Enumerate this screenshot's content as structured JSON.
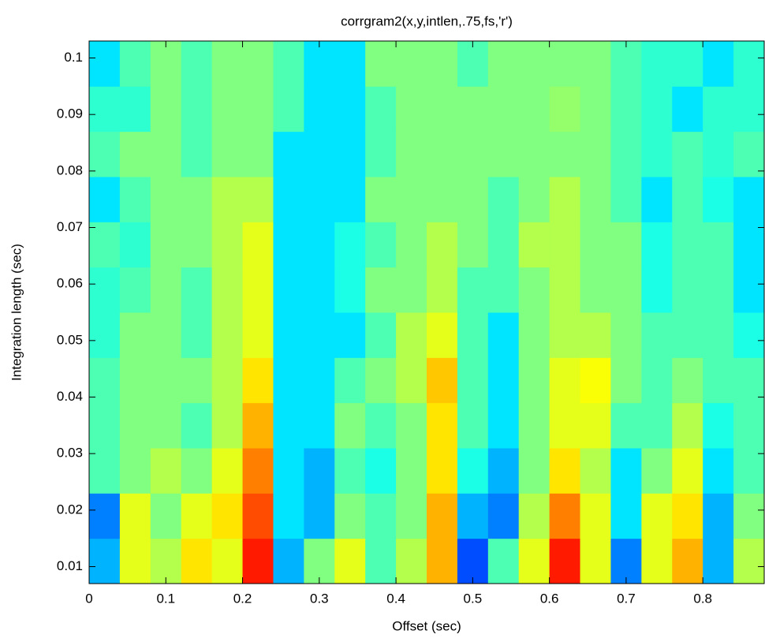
{
  "chart_data": {
    "type": "heatmap",
    "title": "corrgram2(x,y,intlen,.75,fs,'r')",
    "x_label": "Offset (sec)",
    "y_label": "Integration length (sec)",
    "colormap": "jet",
    "clim": [
      0,
      1
    ],
    "x": [
      0.02,
      0.06,
      0.1,
      0.14,
      0.18,
      0.22,
      0.26,
      0.3,
      0.34,
      0.38,
      0.42,
      0.46,
      0.5,
      0.54,
      0.58,
      0.62,
      0.66,
      0.7,
      0.74,
      0.78,
      0.82,
      0.86
    ],
    "y": [
      0.011,
      0.019,
      0.027,
      0.035,
      0.043,
      0.051,
      0.059,
      0.067,
      0.075,
      0.083,
      0.091,
      0.099
    ],
    "z": [
      [
        0.3,
        0.6,
        0.55,
        0.65,
        0.6,
        0.85,
        0.3,
        0.5,
        0.6,
        0.45,
        0.55,
        0.7,
        0.2,
        0.45,
        0.6,
        0.85,
        0.6,
        0.25,
        0.6,
        0.7,
        0.3,
        0.55
      ],
      [
        0.25,
        0.6,
        0.5,
        0.6,
        0.65,
        0.8,
        0.35,
        0.3,
        0.5,
        0.45,
        0.5,
        0.7,
        0.3,
        0.25,
        0.55,
        0.75,
        0.6,
        0.35,
        0.6,
        0.65,
        0.3,
        0.5
      ],
      [
        0.45,
        0.5,
        0.55,
        0.5,
        0.6,
        0.75,
        0.35,
        0.3,
        0.45,
        0.4,
        0.5,
        0.65,
        0.4,
        0.3,
        0.5,
        0.65,
        0.55,
        0.35,
        0.5,
        0.6,
        0.35,
        0.45
      ],
      [
        0.45,
        0.5,
        0.5,
        0.45,
        0.55,
        0.7,
        0.35,
        0.35,
        0.5,
        0.45,
        0.5,
        0.65,
        0.45,
        0.35,
        0.5,
        0.6,
        0.6,
        0.45,
        0.45,
        0.55,
        0.4,
        0.45
      ],
      [
        0.45,
        0.5,
        0.5,
        0.5,
        0.55,
        0.65,
        0.35,
        0.35,
        0.45,
        0.5,
        0.55,
        0.68,
        0.45,
        0.35,
        0.5,
        0.6,
        0.62,
        0.5,
        0.45,
        0.5,
        0.45,
        0.45
      ],
      [
        0.42,
        0.5,
        0.5,
        0.45,
        0.55,
        0.6,
        0.35,
        0.35,
        0.35,
        0.45,
        0.55,
        0.6,
        0.45,
        0.35,
        0.5,
        0.55,
        0.55,
        0.5,
        0.45,
        0.45,
        0.45,
        0.4
      ],
      [
        0.42,
        0.45,
        0.5,
        0.45,
        0.55,
        0.6,
        0.35,
        0.35,
        0.4,
        0.5,
        0.5,
        0.55,
        0.45,
        0.45,
        0.5,
        0.55,
        0.5,
        0.5,
        0.4,
        0.45,
        0.45,
        0.35
      ],
      [
        0.45,
        0.42,
        0.5,
        0.5,
        0.55,
        0.6,
        0.35,
        0.35,
        0.4,
        0.45,
        0.5,
        0.55,
        0.5,
        0.45,
        0.55,
        0.55,
        0.5,
        0.5,
        0.4,
        0.45,
        0.45,
        0.35
      ],
      [
        0.35,
        0.45,
        0.5,
        0.5,
        0.55,
        0.55,
        0.35,
        0.35,
        0.35,
        0.5,
        0.5,
        0.5,
        0.5,
        0.45,
        0.5,
        0.55,
        0.5,
        0.45,
        0.35,
        0.45,
        0.4,
        0.35
      ],
      [
        0.45,
        0.5,
        0.5,
        0.45,
        0.5,
        0.5,
        0.35,
        0.35,
        0.35,
        0.45,
        0.5,
        0.5,
        0.5,
        0.5,
        0.5,
        0.5,
        0.5,
        0.45,
        0.42,
        0.45,
        0.42,
        0.45
      ],
      [
        0.42,
        0.42,
        0.5,
        0.45,
        0.5,
        0.5,
        0.45,
        0.35,
        0.35,
        0.45,
        0.5,
        0.5,
        0.5,
        0.5,
        0.5,
        0.52,
        0.5,
        0.45,
        0.42,
        0.35,
        0.42,
        0.42
      ],
      [
        0.35,
        0.45,
        0.5,
        0.45,
        0.5,
        0.5,
        0.45,
        0.35,
        0.35,
        0.5,
        0.5,
        0.5,
        0.45,
        0.5,
        0.5,
        0.5,
        0.5,
        0.45,
        0.42,
        0.42,
        0.35,
        0.42
      ]
    ],
    "xlim": [
      0,
      0.88
    ],
    "ylim": [
      0.007,
      0.103
    ],
    "xticks": [
      0,
      0.1,
      0.2,
      0.3,
      0.4,
      0.5,
      0.6,
      0.7,
      0.8
    ],
    "yticks": [
      0.01,
      0.02,
      0.03,
      0.04,
      0.05,
      0.06,
      0.07,
      0.08,
      0.09,
      0.1
    ]
  }
}
